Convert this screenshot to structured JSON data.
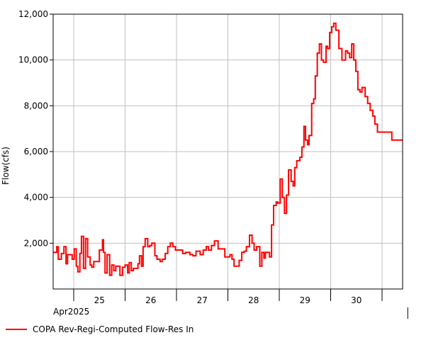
{
  "chart_data": {
    "type": "line",
    "title": "",
    "xlabel": "",
    "ylabel": "Flow(cfs)",
    "ylim": [
      0,
      12000
    ],
    "yticks": [
      2000,
      4000,
      6000,
      8000,
      10000,
      12000
    ],
    "ytick_labels": [
      "2,000",
      "4,000",
      "6,000",
      "8,000",
      "10,000",
      "12,000"
    ],
    "x_range_days": [
      24.6,
      31.4
    ],
    "day_labels": [
      {
        "day": 25,
        "label": "25"
      },
      {
        "day": 26,
        "label": "26"
      },
      {
        "day": 27,
        "label": "27"
      },
      {
        "day": 28,
        "label": "28"
      },
      {
        "day": 29,
        "label": "29"
      },
      {
        "day": 30,
        "label": "30"
      }
    ],
    "month_label": "Apr2025",
    "grid": true,
    "legend_position": "bottom-left",
    "series": [
      {
        "name": "COPA Rev-Regi-Computed Flow-Res In",
        "color": "#ff0000",
        "step": true,
        "x": [
          24.6,
          24.67,
          24.7,
          24.76,
          24.81,
          24.85,
          24.88,
          24.93,
          24.97,
          25.01,
          25.05,
          25.08,
          25.12,
          25.15,
          25.19,
          25.23,
          25.27,
          25.32,
          25.35,
          25.39,
          25.45,
          25.5,
          25.56,
          25.58,
          25.61,
          25.65,
          25.7,
          25.74,
          25.78,
          25.82,
          25.86,
          25.9,
          25.95,
          26.0,
          26.05,
          26.08,
          26.12,
          26.16,
          26.2,
          26.25,
          26.28,
          26.32,
          26.35,
          26.39,
          26.44,
          26.48,
          26.52,
          26.58,
          26.62,
          26.68,
          26.72,
          26.78,
          26.83,
          26.88,
          26.93,
          26.98,
          27.05,
          27.12,
          27.18,
          27.26,
          27.32,
          27.38,
          27.46,
          27.52,
          27.58,
          27.62,
          27.68,
          27.74,
          27.81,
          27.86,
          27.94,
          28.04,
          28.08,
          28.12,
          28.16,
          28.22,
          28.27,
          28.32,
          28.36,
          28.42,
          28.47,
          28.51,
          28.56,
          28.62,
          28.66,
          28.7,
          28.73,
          28.77,
          28.81,
          28.85,
          28.89,
          28.94,
          28.97,
          29.02,
          29.06,
          29.1,
          29.14,
          29.18,
          29.23,
          29.27,
          29.3,
          29.34,
          29.4,
          29.44,
          29.48,
          29.51,
          29.55,
          29.58,
          29.63,
          29.67,
          29.7,
          29.74,
          29.78,
          29.82,
          29.86,
          29.91,
          29.94,
          29.98,
          30.02,
          30.06,
          30.1,
          30.16,
          30.22,
          30.29,
          30.33,
          30.37,
          30.41,
          30.45,
          30.49,
          30.53,
          30.57,
          30.61,
          30.67,
          30.72,
          30.77,
          30.82,
          30.86,
          30.91,
          31.04,
          31.19,
          31.25
        ],
        "values": [
          1600,
          1850,
          1300,
          1550,
          1850,
          1100,
          1500,
          1500,
          1300,
          1750,
          1000,
          750,
          1550,
          2300,
          900,
          2200,
          1400,
          1050,
          950,
          1200,
          1200,
          1700,
          2150,
          1600,
          700,
          1500,
          600,
          1050,
          800,
          1000,
          1000,
          600,
          950,
          1050,
          700,
          1150,
          800,
          900,
          900,
          1100,
          1450,
          1000,
          1850,
          2200,
          1850,
          1900,
          2000,
          1450,
          1300,
          1200,
          1300,
          1550,
          1850,
          2000,
          1850,
          1700,
          1700,
          1550,
          1600,
          1500,
          1450,
          1650,
          1500,
          1700,
          1850,
          1700,
          1900,
          2100,
          1750,
          1750,
          1400,
          1500,
          1300,
          1000,
          1000,
          1250,
          1600,
          1650,
          1850,
          2350,
          2000,
          1700,
          1850,
          1000,
          1600,
          1350,
          1600,
          1600,
          1400,
          2800,
          3650,
          3800,
          3750,
          4800,
          4000,
          3300,
          4100,
          5200,
          4700,
          4500,
          5300,
          5600,
          5750,
          6200,
          7100,
          6500,
          6300,
          6700,
          8100,
          8300,
          9300,
          10300,
          10700,
          10000,
          9900,
          10600,
          10500,
          11200,
          11450,
          11600,
          11300,
          10500,
          10000,
          10400,
          10300,
          10100,
          10700,
          10000,
          9500,
          8700,
          8600,
          8800,
          8400,
          8100,
          7800,
          7550,
          7200,
          6850,
          6850,
          6500,
          6500
        ]
      }
    ]
  }
}
